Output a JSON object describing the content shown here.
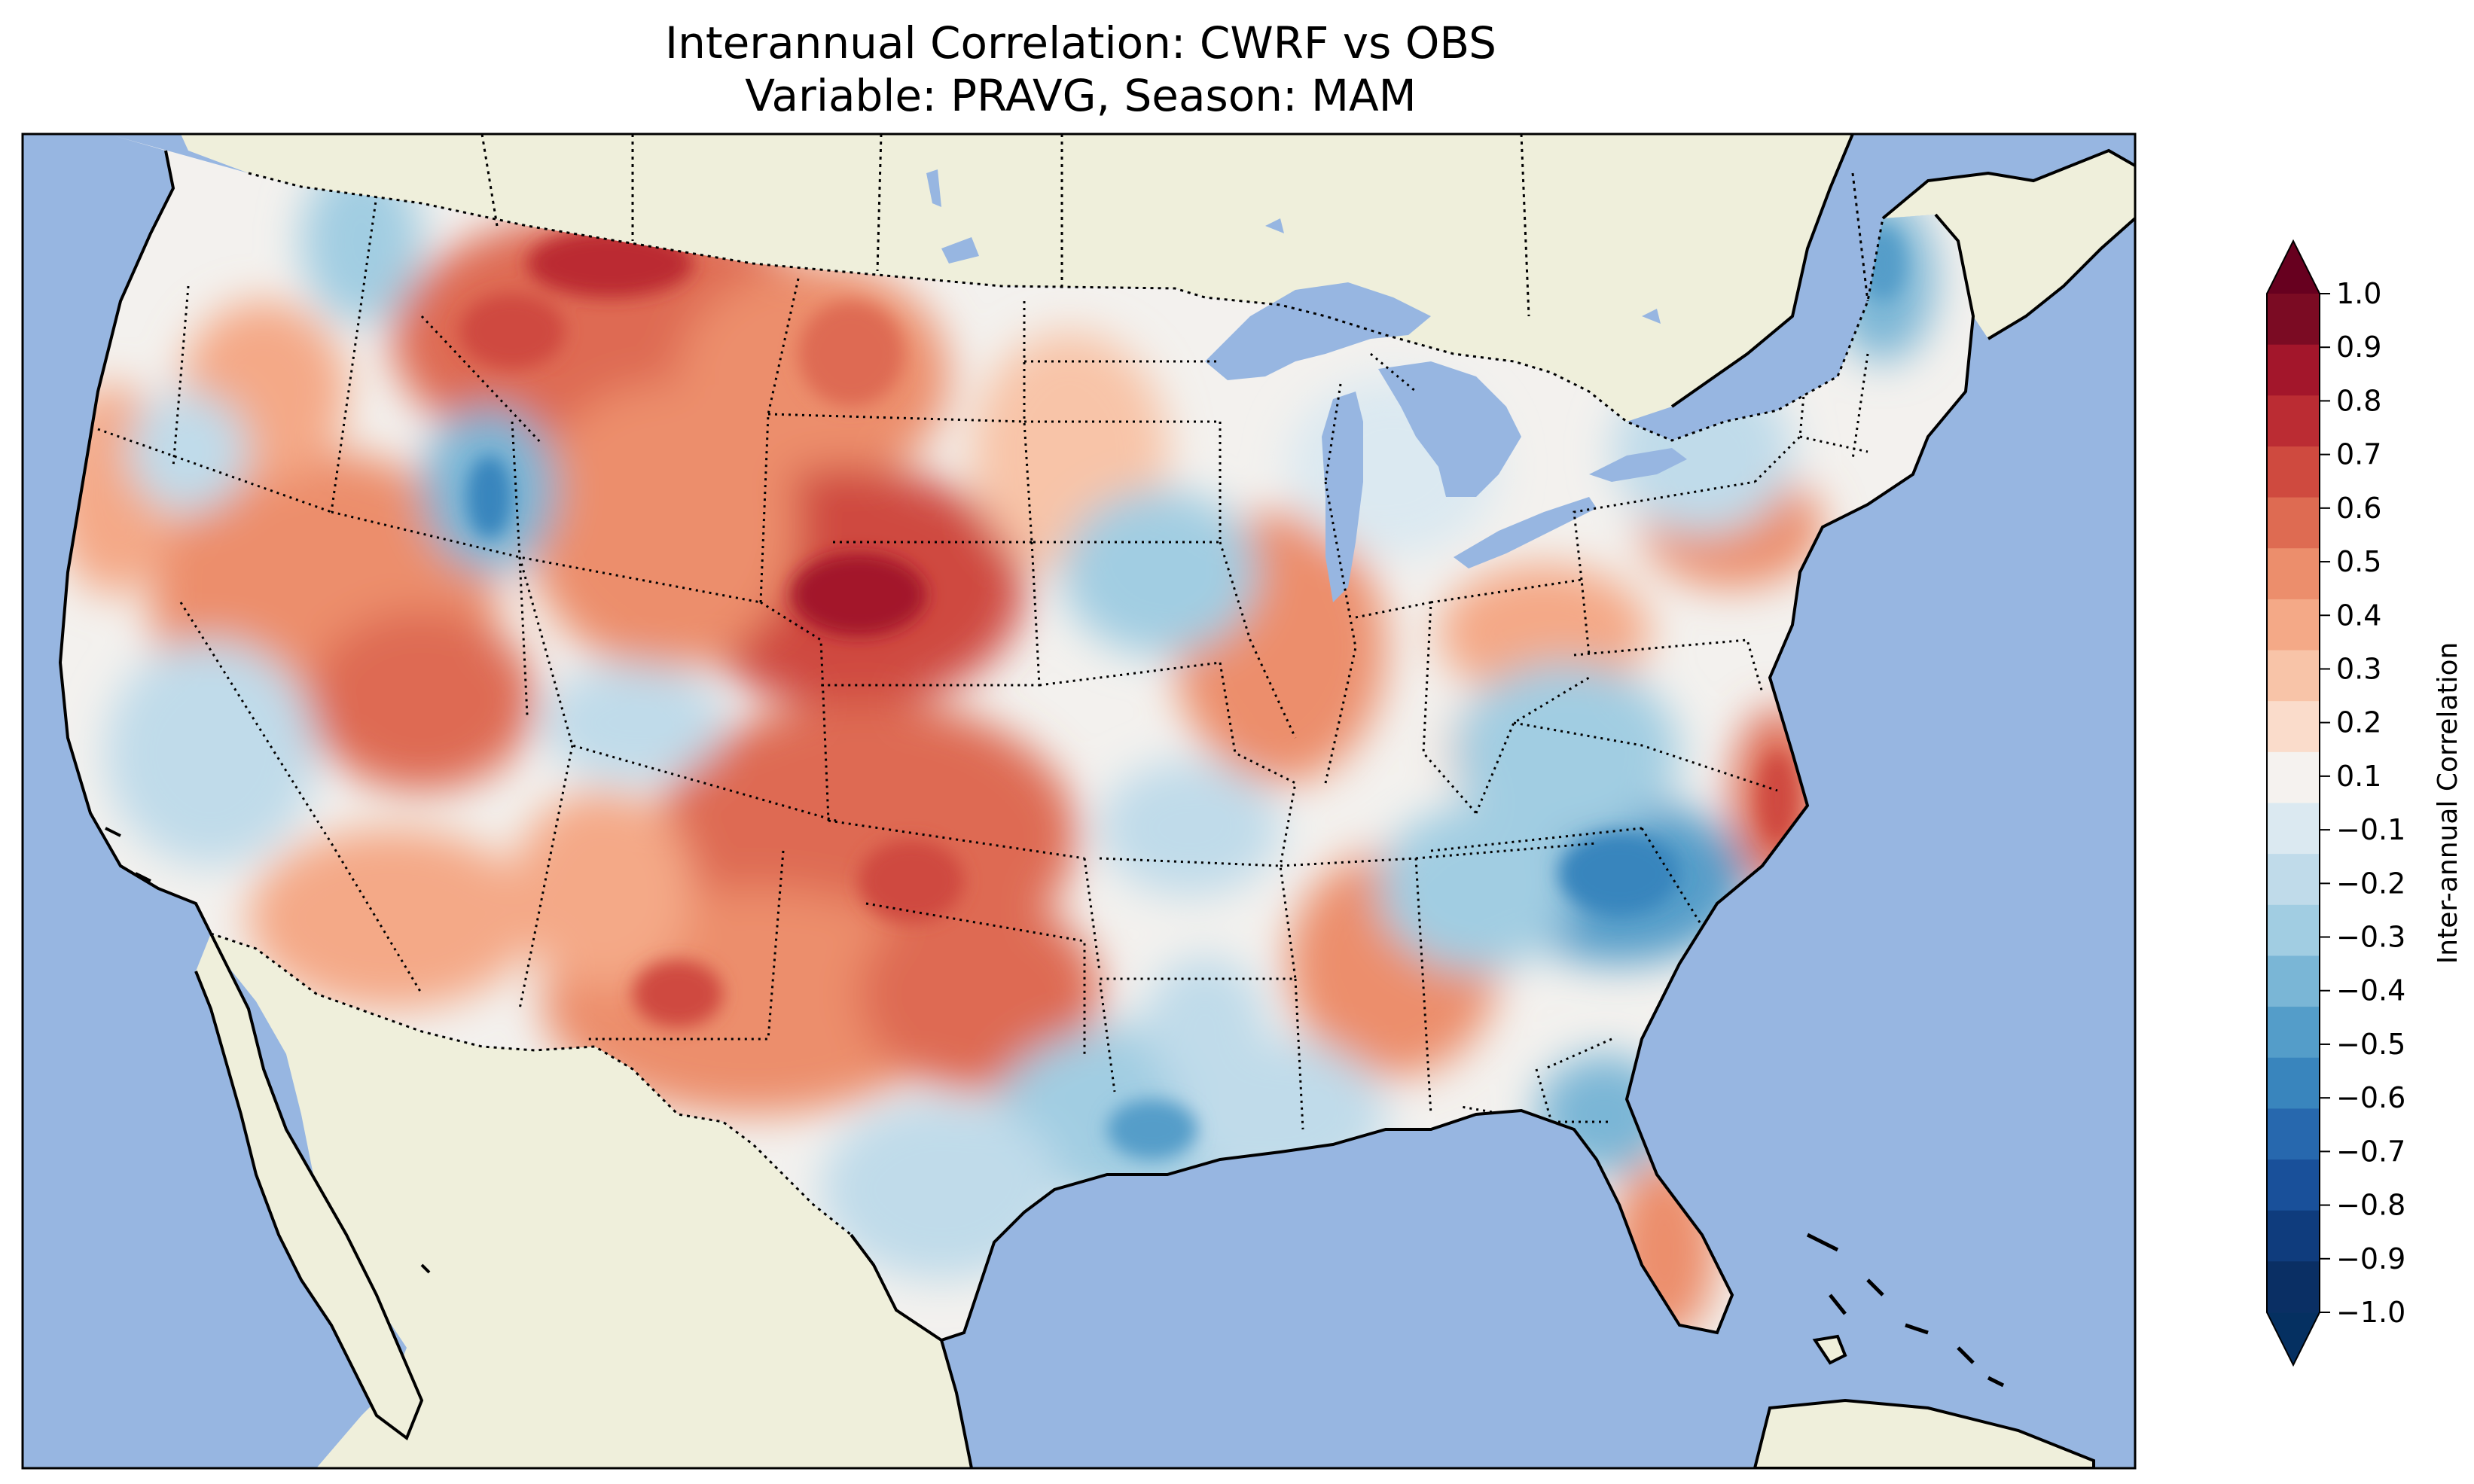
{
  "title": {
    "line1": "Interannual Correlation: CWRF vs OBS",
    "line2": "Variable: PRAVG, Season: MAM"
  },
  "colorbar": {
    "label": "Inter-annual Correlation",
    "ticks": [
      "1.0",
      "0.9",
      "0.8",
      "0.7",
      "0.6",
      "0.5",
      "0.4",
      "0.3",
      "0.2",
      "0.1",
      "−0.1",
      "−0.2",
      "−0.3",
      "−0.4",
      "−0.5",
      "−0.6",
      "−0.7",
      "−0.8",
      "−0.9",
      "−1.0"
    ],
    "colors_top_to_bottom": [
      "#7b0b23",
      "#a3162b",
      "#bb2c33",
      "#cf4a3f",
      "#de6b52",
      "#ec8e6c",
      "#f4a987",
      "#f8c4a8",
      "#fadccb",
      "#f5f2ef",
      "#dbe9f1",
      "#c0dbea",
      "#a1cde2",
      "#7ab6d6",
      "#549dc9",
      "#3985bd",
      "#2768ae",
      "#19509a",
      "#0f3c7d",
      "#0a2f64"
    ],
    "extend_max_color": "#67001f",
    "extend_min_color": "#053061"
  },
  "map": {
    "ocean_color": "#97b6e1",
    "land_color": "#efefdb",
    "lakes": [
      "Lake Superior",
      "Lake Michigan",
      "Lake Huron",
      "Lake Erie",
      "Lake Ontario"
    ],
    "features": [
      "coastlines",
      "country borders",
      "state borders (dotted)",
      "correlation contours"
    ]
  }
}
